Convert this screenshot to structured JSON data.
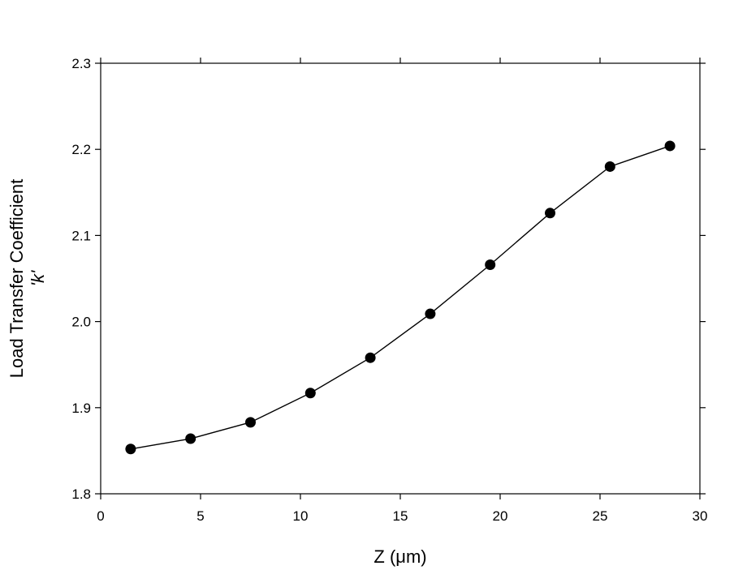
{
  "chart_data": {
    "type": "line",
    "title": "",
    "xlabel": "Z (μm)",
    "ylabel_line1": "Load Transfer Coefficient",
    "ylabel_line2": "'k'",
    "xlim": [
      0,
      30
    ],
    "ylim": [
      1.8,
      2.3
    ],
    "x_ticks": [
      0,
      5,
      10,
      15,
      20,
      25,
      30
    ],
    "y_ticks": [
      1.8,
      1.9,
      2.0,
      2.1,
      2.2,
      2.3
    ],
    "x_tick_labels": [
      "0",
      "5",
      "10",
      "15",
      "20",
      "25",
      "30"
    ],
    "y_tick_labels": [
      "1.8",
      "1.9",
      "2.0",
      "2.1",
      "2.2",
      "2.3"
    ],
    "grid": false,
    "series": [
      {
        "x": [
          1.5,
          4.5,
          7.5,
          10.5,
          13.5,
          16.5,
          19.5,
          22.5,
          25.5,
          28.5
        ],
        "y": [
          1.852,
          1.864,
          1.883,
          1.917,
          1.958,
          2.009,
          2.066,
          2.126,
          2.18,
          2.204
        ],
        "marker": "filled-circle",
        "color": "#000000"
      }
    ]
  }
}
